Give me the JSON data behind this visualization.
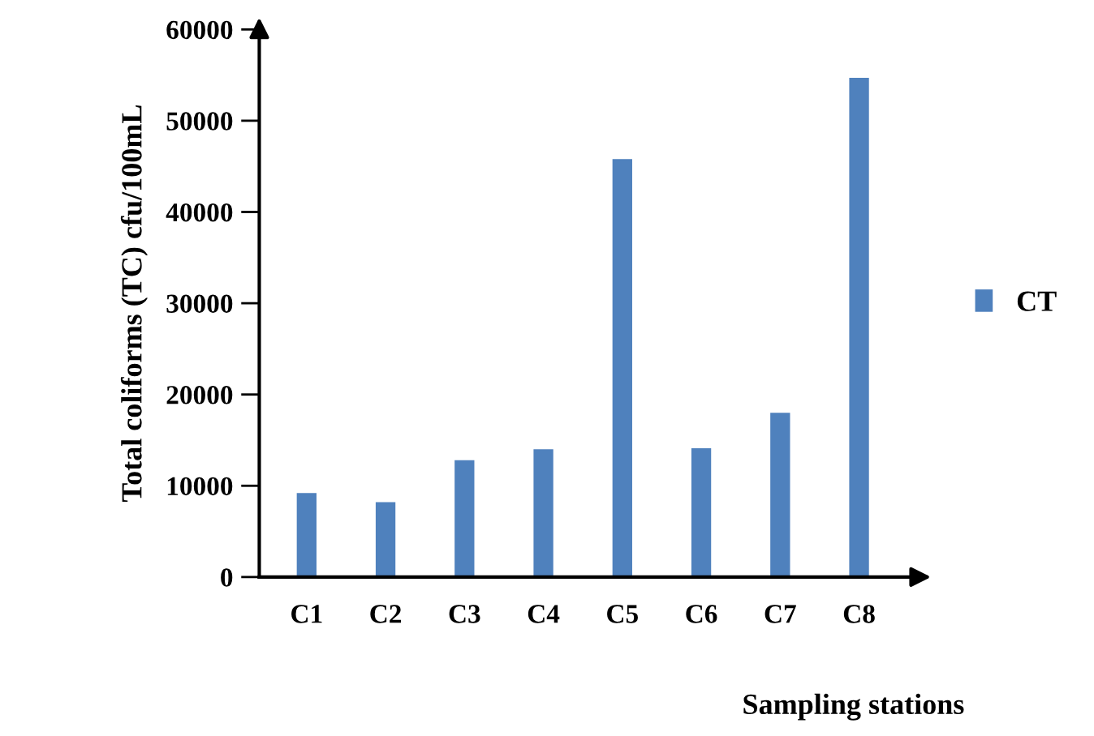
{
  "chart_data": {
    "type": "bar",
    "xlabel": "Sampling stations",
    "ylabel": "Total coliforms (TC) cfu/100mL",
    "categories": [
      "C1",
      "C2",
      "C3",
      "C4",
      "C5",
      "C6",
      "C7",
      "C8"
    ],
    "series": [
      {
        "name": "CT",
        "color": "#4f81bd",
        "values": [
          9200,
          8200,
          12800,
          14000,
          45800,
          14100,
          18000,
          54700
        ]
      }
    ],
    "ylim": [
      0,
      60000
    ],
    "yticks": [
      0,
      10000,
      20000,
      30000,
      40000,
      50000,
      60000
    ],
    "grid": false,
    "legend": "right"
  }
}
